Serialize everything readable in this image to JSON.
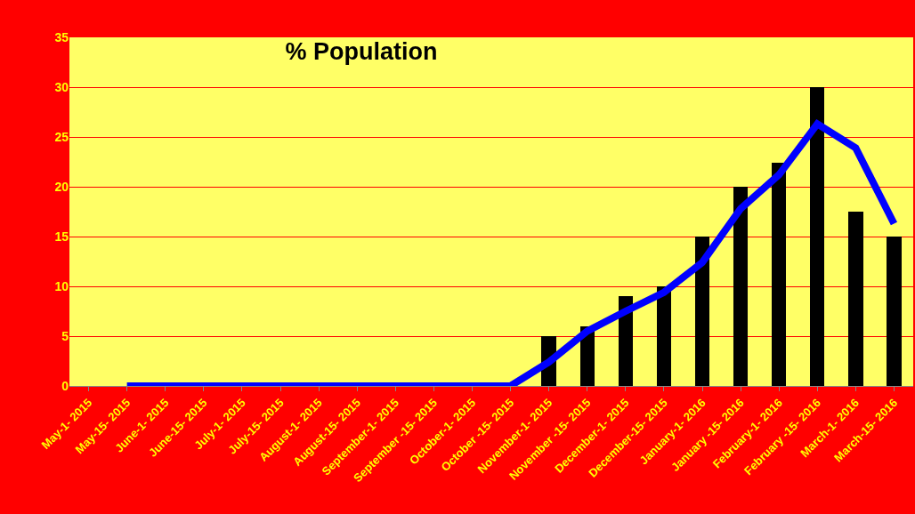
{
  "chart_data": {
    "type": "bar",
    "title": "% Population",
    "categories": [
      "May-1- 2015",
      "May-15- 2015",
      "June-1- 2015",
      "June-15- 2015",
      "July-1- 2015",
      "July-15- 2015",
      "August-1- 2015",
      "August-15- 2015",
      "September-1- 2015",
      "September -15- 2015",
      "October-1- 2015",
      "October -15- 2015",
      "November-1- 2015",
      "November -15- 2015",
      "December-1- 2015",
      "December-15- 2015",
      "January-1- 2016",
      "January -15- 2016",
      "February-1- 2016",
      "February -15- 2016",
      "March-1- 2016",
      "March-15- 2016"
    ],
    "series": [
      {
        "color": "#000000",
        "values": [
          null,
          null,
          null,
          null,
          null,
          null,
          null,
          null,
          null,
          null,
          null,
          null,
          5,
          6,
          9,
          10,
          15,
          20,
          22.4,
          30,
          17.5,
          15
        ]
      },
      {
        "type": "line",
        "color": "#0000ff",
        "values": [
          null,
          0,
          0,
          0,
          0,
          0,
          0,
          0,
          0,
          0,
          0,
          0,
          2.4,
          5.5,
          7.5,
          9.4,
          12.4,
          17.8,
          21.2,
          26.3,
          23.9,
          16.3
        ]
      }
    ],
    "ylim": [
      0,
      35
    ],
    "yticks": [
      0,
      5,
      10,
      15,
      20,
      25,
      30,
      35
    ],
    "grid": "y"
  }
}
